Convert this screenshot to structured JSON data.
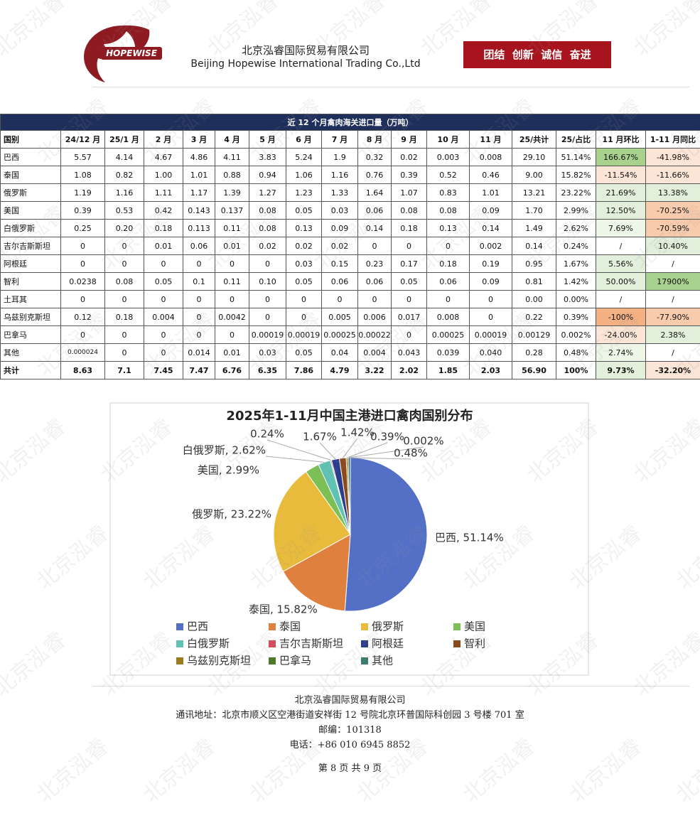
{
  "header": {
    "logo_text": "HOPEWISE",
    "company_cn": "北京泓睿国际贸易有限公司",
    "company_en": "Beijing Hopewise International Trading Co.,Ltd",
    "slogan": "团结  创新  诚信  奋进"
  },
  "watermark": "北京泓睿",
  "table": {
    "title": "近 12 个月禽肉海关进口量（万吨）",
    "columns": [
      "国别",
      "24/12 月",
      "25/1 月",
      "2 月",
      "3 月",
      "4 月",
      "5 月",
      "6 月",
      "7 月",
      "8 月",
      "9 月",
      "10 月",
      "11 月",
      "25/共计",
      "25/占比",
      "11 月环比",
      "1-11 月同比"
    ],
    "rows": [
      [
        "巴西",
        "5.57",
        "4.14",
        "4.67",
        "4.86",
        "4.11",
        "3.83",
        "5.24",
        "1.9",
        "0.32",
        "0.02",
        "0.003",
        "0.008",
        "29.10",
        "51.14%",
        "166.67%",
        "-41.98%"
      ],
      [
        "泰国",
        "1.08",
        "0.82",
        "1.00",
        "1.01",
        "0.88",
        "0.94",
        "1.06",
        "1.16",
        "0.76",
        "0.39",
        "0.52",
        "0.46",
        "9.00",
        "15.82%",
        "-11.54%",
        "-11.66%"
      ],
      [
        "俄罗斯",
        "1.19",
        "1.16",
        "1.11",
        "1.17",
        "1.39",
        "1.27",
        "1.23",
        "1.33",
        "1.64",
        "1.07",
        "0.83",
        "1.01",
        "13.21",
        "23.22%",
        "21.69%",
        "13.38%"
      ],
      [
        "美国",
        "0.39",
        "0.53",
        "0.42",
        "0.143",
        "0.137",
        "0.08",
        "0.05",
        "0.03",
        "0.06",
        "0.08",
        "0.08",
        "0.09",
        "1.70",
        "2.99%",
        "12.50%",
        "-70.25%"
      ],
      [
        "白俄罗斯",
        "0.25",
        "0.20",
        "0.18",
        "0.113",
        "0.11",
        "0.08",
        "0.13",
        "0.09",
        "0.14",
        "0.18",
        "0.13",
        "0.14",
        "1.49",
        "2.62%",
        "7.69%",
        "-70.59%"
      ],
      [
        "吉尔吉斯斯坦",
        "0",
        "0",
        "0.01",
        "0.06",
        "0.01",
        "0.02",
        "0.02",
        "0.02",
        "0",
        "0",
        "0",
        "0.002",
        "0.14",
        "0.24%",
        "/",
        "10.40%"
      ],
      [
        "阿根廷",
        "0",
        "0",
        "0",
        "0",
        "0",
        "0",
        "0.03",
        "0.15",
        "0.23",
        "0.17",
        "0.18",
        "0.19",
        "0.95",
        "1.67%",
        "5.56%",
        "/"
      ],
      [
        "智利",
        "0.0238",
        "0.08",
        "0.05",
        "0.1",
        "0.11",
        "0.10",
        "0.05",
        "0.06",
        "0.06",
        "0.05",
        "0.06",
        "0.09",
        "0.81",
        "1.42%",
        "50.00%",
        "17900%"
      ],
      [
        "土耳其",
        "0",
        "0",
        "0",
        "0",
        "0",
        "0",
        "0",
        "0",
        "0",
        "0",
        "0",
        "0",
        "0.00",
        "0.00%",
        "/",
        "/"
      ],
      [
        "乌兹别克斯坦",
        "0.12",
        "0.18",
        "0.004",
        "0",
        "0.0042",
        "0",
        "0",
        "0.005",
        "0.006",
        "0.017",
        "0.008",
        "0",
        "0.22",
        "0.39%",
        "-100%",
        "-77.90%"
      ],
      [
        "巴拿马",
        "0",
        "0",
        "0",
        "0",
        "0",
        "0.00019",
        "0.00019",
        "0.00025",
        "0.00022",
        "0",
        "0.00025",
        "0.00019",
        "0.00129",
        "0.002%",
        "-24.00%",
        "2.38%"
      ],
      [
        "其他",
        "0.000024",
        "0",
        "0",
        "0.014",
        "0.01",
        "0.03",
        "0.05",
        "0.04",
        "0.004",
        "0.043",
        "0.039",
        "0.040",
        "0.28",
        "0.48%",
        "2.74%",
        "/"
      ],
      [
        "共计",
        "8.63",
        "7.1",
        "7.45",
        "7.47",
        "6.76",
        "6.35",
        "7.86",
        "4.79",
        "3.22",
        "2.02",
        "1.85",
        "2.03",
        "56.90",
        "100%",
        "9.73%",
        "-32.20%"
      ]
    ],
    "highlight": [
      [
        "#a9d18e",
        "#fbe5d6"
      ],
      [
        "#fbe5d6",
        "#fbe5d6"
      ],
      [
        "#e2efda",
        "#e2efda"
      ],
      [
        "#e2efda",
        "#f8cbad"
      ],
      [
        "#eef6e8",
        "#f8cbad"
      ],
      [
        null,
        "#e2efda"
      ],
      [
        "#e2efda",
        null
      ],
      [
        "#e2efda",
        "#a9d18e"
      ],
      [
        null,
        null
      ],
      [
        "#f4b183",
        "#f8cbad"
      ],
      [
        "#fbe5d6",
        "#e2efda"
      ],
      [
        "#eef6e8",
        null
      ],
      [
        "#e2efda",
        "#fbe5d6"
      ]
    ]
  },
  "chart_data": {
    "type": "pie",
    "title": "2025年1-11月中国主港进口禽肉国别分布",
    "categories": [
      "巴西",
      "泰国",
      "俄罗斯",
      "美国",
      "白俄罗斯",
      "吉尔吉斯斯坦",
      "阿根廷",
      "智利",
      "乌兹别克斯坦",
      "巴拿马",
      "其他"
    ],
    "values": [
      51.14,
      15.82,
      23.22,
      2.99,
      2.62,
      0.24,
      1.67,
      1.42,
      0.39,
      0.002,
      0.48
    ],
    "value_labels": [
      "巴西, 51.14%",
      "泰国, 15.82%",
      "俄罗斯, 23.22%",
      "美国, 2.99%",
      "白俄罗斯, 2.62%",
      "0.24%",
      "1.67%",
      "1.42%",
      "0.39%",
      "0.002%",
      "0.48%"
    ],
    "colors": [
      "#5470c6",
      "#e0803e",
      "#e8bb3c",
      "#7dbf57",
      "#5ec3b4",
      "#d9475a",
      "#2b3d8c",
      "#8b4a1c",
      "#9a7b1e",
      "#4c7a2c",
      "#3a7a70"
    ],
    "legend": "bottom"
  },
  "footer": {
    "lines": [
      "北京泓睿国际贸易有限公司",
      "通讯地址：北京市顺义区空港街道安祥街 12 号院北京环普国际科创园 3 号楼 701 室",
      "邮编：101318",
      "电话：+86 010 6945 8852"
    ],
    "page": "第 8 页 共 9 页"
  }
}
